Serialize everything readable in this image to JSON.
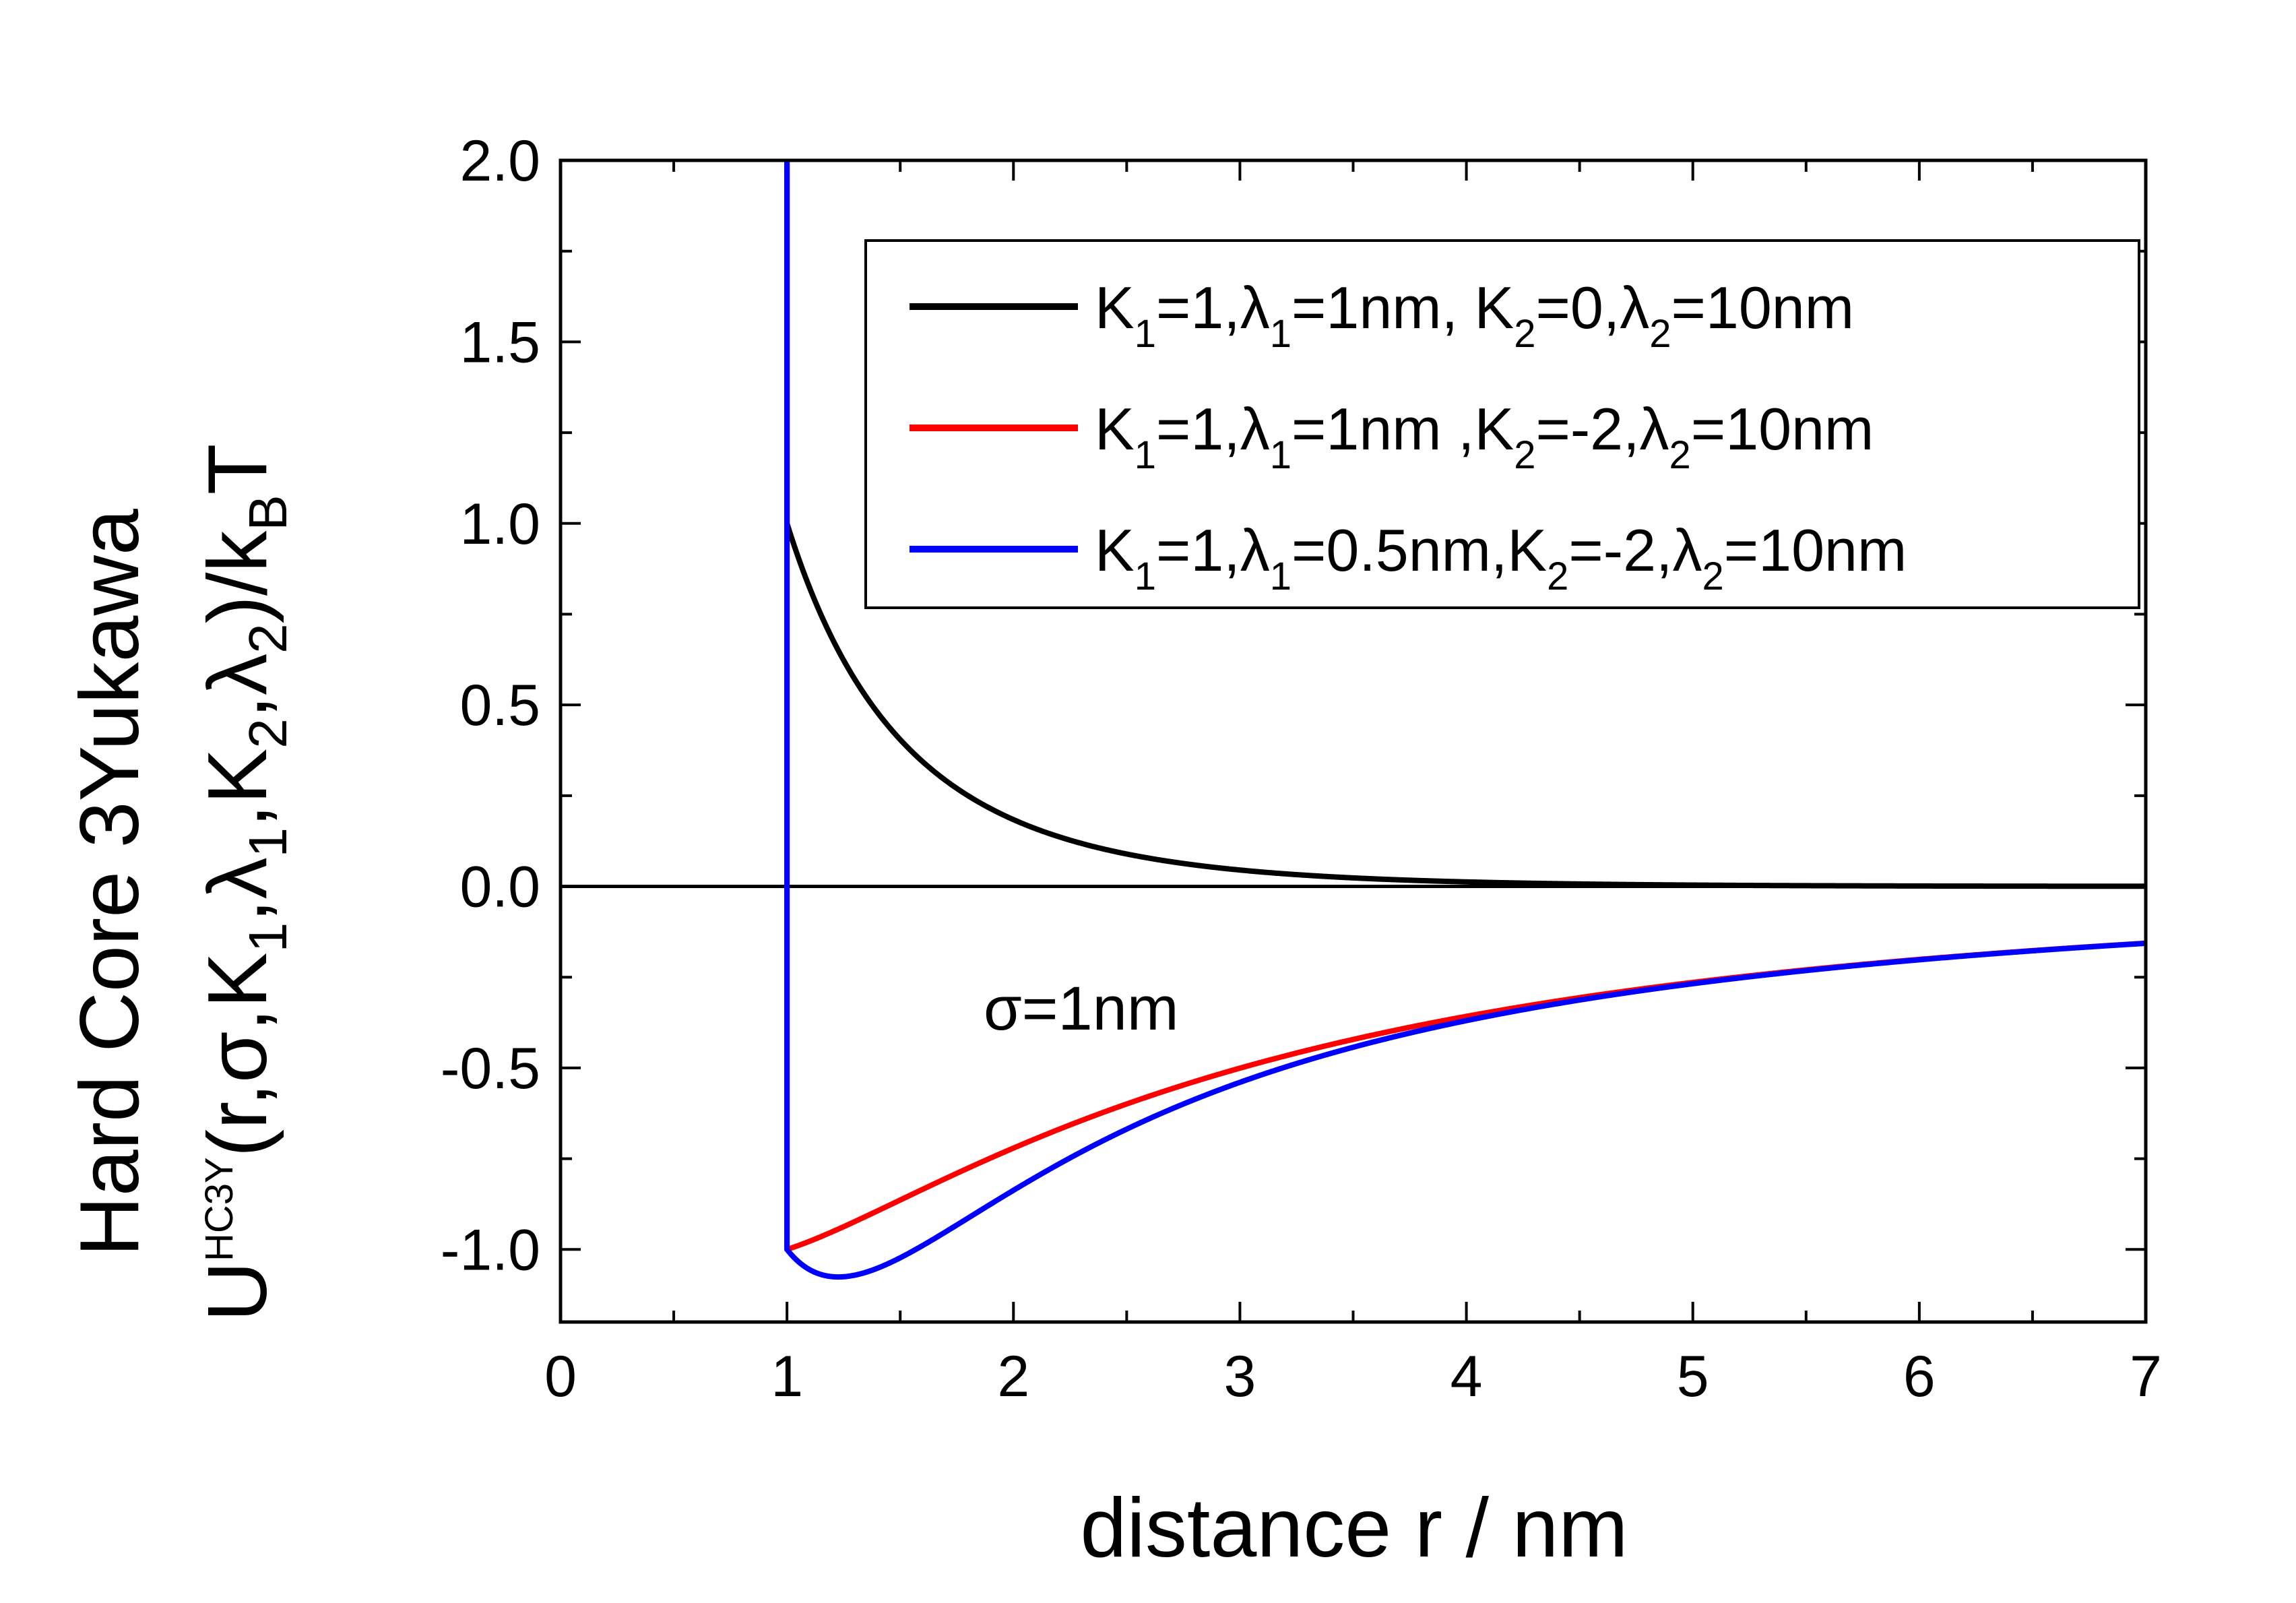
{
  "chart_data": {
    "type": "line",
    "xlabel": "distance r / nm",
    "ylabel_line1": "Hard Core 3Yukawa",
    "ylabel_line2": {
      "U": "U",
      "sup": "HC3Y",
      "args": [
        "(r,σ,K",
        "1",
        ",λ",
        "1",
        ",K",
        "2",
        ",λ",
        "2",
        ")/k",
        "B",
        "T"
      ]
    },
    "xlim": [
      0,
      7
    ],
    "ylim": [
      -1.2,
      2.0
    ],
    "xticks": [
      "0",
      "1",
      "2",
      "3",
      "4",
      "5",
      "6",
      "7"
    ],
    "yticks": [
      "-1.0",
      "-0.5",
      "0.0",
      "0.5",
      "1.0",
      "1.5",
      "2.0"
    ],
    "xtick_values": [
      0,
      1,
      2,
      3,
      4,
      5,
      6,
      7
    ],
    "ytick_values": [
      -1.0,
      -0.5,
      0.0,
      0.5,
      1.0,
      1.5,
      2.0
    ],
    "zero_line": true,
    "annotation": "σ=1nm",
    "legend_position": "top-right",
    "series": [
      {
        "legend_parts": [
          "K",
          "1",
          "=1,λ",
          "1",
          "=1nm, K",
          "2",
          "=0,λ",
          "2",
          "=10nm"
        ],
        "color": "#000000",
        "K1": 1,
        "lambda1": 1,
        "K2": 0,
        "lambda2": 10
      },
      {
        "legend_parts": [
          "K",
          "1",
          "=1,λ",
          "1",
          "=1nm ,K",
          "2",
          "=-2,λ",
          "2",
          "=10nm"
        ],
        "color": "#ff0000",
        "K1": 1,
        "lambda1": 1,
        "K2": -2,
        "lambda2": 10
      },
      {
        "legend_parts": [
          "K",
          "1",
          "=1,λ",
          "1",
          "=0.5nm,K",
          "2",
          "=-2,λ",
          "2",
          "=10nm"
        ],
        "color": "#0000ff",
        "K1": 1,
        "lambda1": 0.5,
        "K2": -2,
        "lambda2": 10
      }
    ],
    "sigma": 1
  }
}
